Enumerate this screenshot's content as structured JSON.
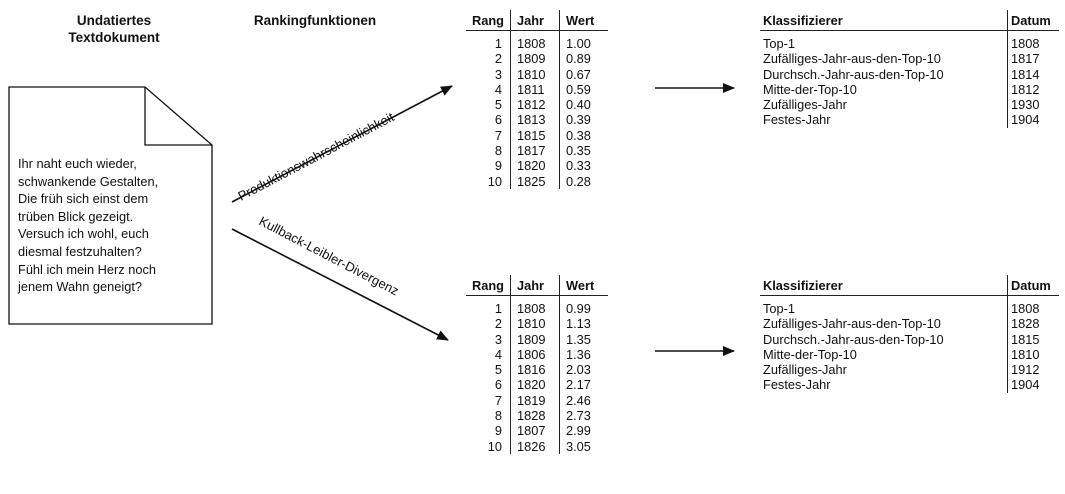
{
  "headings": {
    "document": "Undatiertes Textdokument",
    "document_line1": "Undatiertes",
    "document_line2": "Textdokument",
    "ranking": "Rankingfunktionen"
  },
  "document_text": [
    "Ihr naht euch wieder,",
    "schwankende Gestalten,",
    "Die früh sich einst dem",
    "trüben Blick gezeigt.",
    "Versuch ich wohl, euch",
    "diesmal festzuhalten?",
    "Fühl ich mein Herz noch",
    "jenem Wahn geneigt?"
  ],
  "ranking_functions": {
    "upper": "Produktionswahrscheinlichkeit",
    "lower": "Kullback-Leibler-Divergenz"
  },
  "rank_tables": [
    {
      "headers": [
        "Rang",
        "Jahr",
        "Wert"
      ],
      "rows": [
        [
          "1",
          "1808",
          "1.00"
        ],
        [
          "2",
          "1809",
          "0.89"
        ],
        [
          "3",
          "1810",
          "0.67"
        ],
        [
          "4",
          "1811",
          "0.59"
        ],
        [
          "5",
          "1812",
          "0.40"
        ],
        [
          "6",
          "1813",
          "0.39"
        ],
        [
          "7",
          "1815",
          "0.38"
        ],
        [
          "8",
          "1817",
          "0.35"
        ],
        [
          "9",
          "1820",
          "0.33"
        ],
        [
          "10",
          "1825",
          "0.28"
        ]
      ]
    },
    {
      "headers": [
        "Rang",
        "Jahr",
        "Wert"
      ],
      "rows": [
        [
          "1",
          "1808",
          "0.99"
        ],
        [
          "2",
          "1810",
          "1.13"
        ],
        [
          "3",
          "1809",
          "1.35"
        ],
        [
          "4",
          "1806",
          "1.36"
        ],
        [
          "5",
          "1816",
          "2.03"
        ],
        [
          "6",
          "1820",
          "2.17"
        ],
        [
          "7",
          "1819",
          "2.46"
        ],
        [
          "8",
          "1828",
          "2.73"
        ],
        [
          "9",
          "1807",
          "2.99"
        ],
        [
          "10",
          "1826",
          "3.05"
        ]
      ]
    }
  ],
  "classifier_tables": [
    {
      "headers": [
        "Klassifizierer",
        "Datum"
      ],
      "rows": [
        [
          "Top-1",
          "1808"
        ],
        [
          "Zufälliges-Jahr-aus-den-Top-10",
          "1817"
        ],
        [
          "Durchsch.-Jahr-aus-den-Top-10",
          "1814"
        ],
        [
          "Mitte-der-Top-10",
          "1812"
        ],
        [
          "Zufälliges-Jahr",
          "1930"
        ],
        [
          "Festes-Jahr",
          "1904"
        ]
      ]
    },
    {
      "headers": [
        "Klassifizierer",
        "Datum"
      ],
      "rows": [
        [
          "Top-1",
          "1808"
        ],
        [
          "Zufälliges-Jahr-aus-den-Top-10",
          "1828"
        ],
        [
          "Durchsch.-Jahr-aus-den-Top-10",
          "1815"
        ],
        [
          "Mitte-der-Top-10",
          "1810"
        ],
        [
          "Zufälliges-Jahr",
          "1912"
        ],
        [
          "Festes-Jahr",
          "1904"
        ]
      ]
    }
  ],
  "colors": {
    "ink": "#111111",
    "background": "#ffffff"
  }
}
